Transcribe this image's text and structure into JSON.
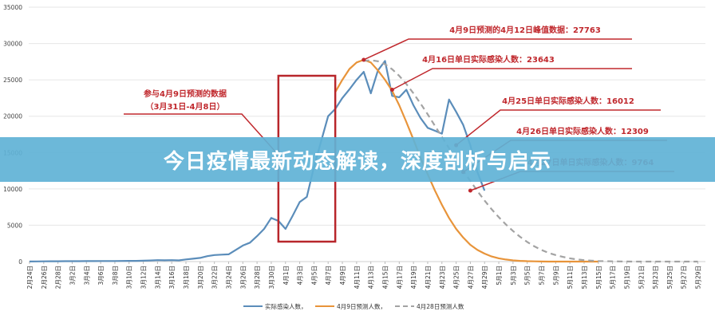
{
  "banner": {
    "title": "今日疫情最新动态解读，深度剖析与启示"
  },
  "chart_data": {
    "type": "line",
    "title": "",
    "xlabel": "",
    "ylabel": "",
    "ylim": [
      0,
      35000
    ],
    "yticks": [
      "0",
      "5000",
      "10000",
      "15000",
      "20000",
      "25000",
      "30000",
      "35000"
    ],
    "grid": true,
    "legend_position": "bottom-center",
    "x_tick_labels": [
      "2月24日",
      "2月26日",
      "2月28日",
      "3月2日",
      "3月4日",
      "3月6日",
      "3月8日",
      "3月10日",
      "3月12日",
      "3月14日",
      "3月16日",
      "3月18日",
      "3月20日",
      "3月22日",
      "3月24日",
      "3月26日",
      "3月28日",
      "3月30日",
      "4月1日",
      "4月3日",
      "4月5日",
      "4月7日",
      "4月9日",
      "4月11日",
      "4月13日",
      "4月15日",
      "4月17日",
      "4月19日",
      "4月21日",
      "4月23日",
      "4月25日",
      "4月27日",
      "4月29日",
      "5月1日",
      "5月3日",
      "5月5日",
      "5月7日",
      "5月9日",
      "5月11日",
      "5月13日",
      "5月15日",
      "5月17日",
      "5月19日",
      "5月21日",
      "5月23日",
      "5月25日",
      "5月27日",
      "5月29日"
    ],
    "series": [
      {
        "name": "实际感染人数，",
        "color": "#5b8dba",
        "style": "solid",
        "start": "2月24日",
        "values": [
          10,
          20,
          30,
          40,
          40,
          50,
          60,
          60,
          70,
          70,
          80,
          80,
          80,
          90,
          100,
          100,
          120,
          150,
          200,
          180,
          200,
          160,
          300,
          400,
          500,
          750,
          900,
          950,
          1000,
          1600,
          2200,
          2600,
          3500,
          4500,
          6000,
          5600,
          4500,
          6300,
          8200,
          8900,
          13000,
          16500,
          20000,
          21000,
          22500,
          23700,
          25000,
          26100,
          23150,
          26300,
          27600,
          22800,
          22600,
          23643,
          21500,
          19750,
          18400,
          18000,
          17600,
          22300,
          20600,
          18800,
          16012,
          12309,
          9764
        ]
      },
      {
        "name": "4月9日预测人数，",
        "color": "#e8943a",
        "style": "solid",
        "start": "4月8日",
        "values": [
          23300,
          25000,
          26500,
          27400,
          27763,
          27400,
          26300,
          25000,
          23500,
          21500,
          19200,
          16800,
          14300,
          12000,
          9800,
          7800,
          6000,
          4500,
          3300,
          2300,
          1600,
          1100,
          700,
          450,
          280,
          170,
          100,
          60,
          30,
          10,
          0,
          0,
          0,
          0,
          0,
          0,
          0,
          0
        ]
      },
      {
        "name": "4月28日预测人数",
        "color": "#a3a3a3",
        "style": "dashed",
        "start": "4月12日",
        "values": [
          27600,
          27700,
          27560,
          27150,
          26460,
          25550,
          24430,
          23150,
          21750,
          20250,
          18700,
          17150,
          15600,
          14000,
          12500,
          11100,
          9700,
          8400,
          7200,
          6100,
          5100,
          4200,
          3400,
          2700,
          2100,
          1600,
          1200,
          900,
          650,
          450,
          300,
          200,
          130,
          80,
          50,
          30,
          20,
          10,
          0,
          0,
          0,
          0,
          0,
          0,
          0,
          0,
          0,
          0
        ]
      }
    ],
    "highlight_box": {
      "from": "3月31日",
      "to": "4月8日",
      "label_line1": "参与4月9日预测的数据",
      "label_line2": "（3月31日-4月8日）"
    },
    "annotations": [
      {
        "text": "4月9日预测的4月12日峰值数据：27763",
        "date": "4月12日",
        "value": 27763
      },
      {
        "text": "4月16日单日实际感染人数：23643",
        "date": "4月16日",
        "value": 23643
      },
      {
        "text": "4月25日单日实际感染人数：16012",
        "date": "4月25日",
        "value": 16012
      },
      {
        "text": "4月26日单日实际感染人数：12309",
        "date": "4月26日",
        "value": 12309
      },
      {
        "text": "4月27日单日实际感染人数：9764",
        "date": "4月27日",
        "value": 9764
      }
    ],
    "annotation_color": "#c0282d"
  }
}
